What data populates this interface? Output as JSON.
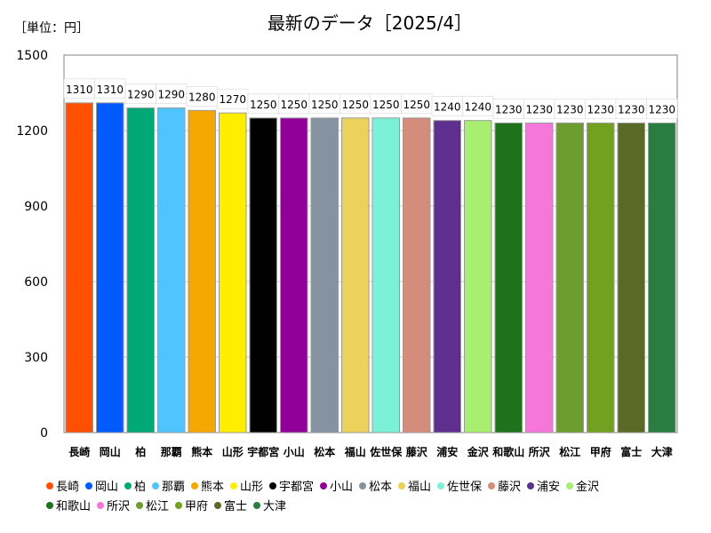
{
  "unit_label": "［単位：円］",
  "chart_data": {
    "type": "bar",
    "title": "最新のデータ［2025/4］",
    "ylim": [
      0,
      1500
    ],
    "yticks": [
      0,
      300,
      600,
      900,
      1200,
      1500
    ],
    "grid": true,
    "legend_position": "bottom",
    "categories": [
      "長崎",
      "岡山",
      "柏",
      "那覇",
      "熊本",
      "山形",
      "宇都宮",
      "小山",
      "松本",
      "福山",
      "佐世保",
      "藤沢",
      "浦安",
      "金沢",
      "和歌山",
      "所沢",
      "松江",
      "甲府",
      "富士",
      "大津"
    ],
    "values": [
      1310,
      1310,
      1290,
      1290,
      1280,
      1270,
      1250,
      1250,
      1250,
      1250,
      1250,
      1250,
      1240,
      1240,
      1230,
      1230,
      1230,
      1230,
      1230,
      1230
    ],
    "value_labels": [
      "1310",
      "1310",
      "1290",
      "1290",
      "1280",
      "1270",
      "1250",
      "1250",
      "1250",
      "1250",
      "1250",
      "1250",
      "1240",
      "1240",
      "1230",
      "1230",
      "1230",
      "1230",
      "1230",
      "1230"
    ],
    "colors": [
      "#ff4f00",
      "#005bff",
      "#00a878",
      "#4fc4ff",
      "#f5a700",
      "#ffee00",
      "#000000",
      "#900099",
      "#8593a0",
      "#ecd15a",
      "#7df0d8",
      "#d48c7c",
      "#5e2f8e",
      "#a8ee70",
      "#1d721b",
      "#f577d9",
      "#6c9d2e",
      "#71a11f",
      "#5a6a26",
      "#2a7d40"
    ]
  }
}
